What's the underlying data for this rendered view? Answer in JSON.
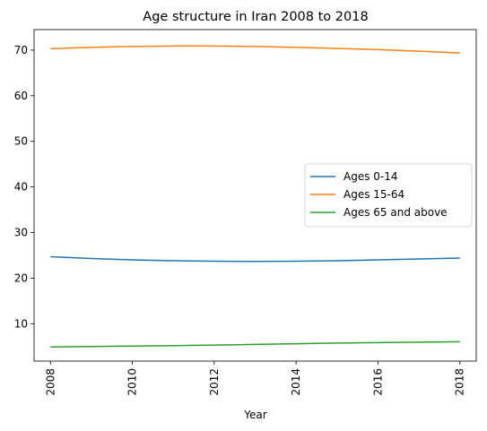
{
  "chart_data": {
    "type": "line",
    "title": "Age structure in Iran 2008 to 2018",
    "xlabel": "Year",
    "ylabel": "",
    "x": [
      2008,
      2009,
      2010,
      2011,
      2012,
      2013,
      2014,
      2015,
      2016,
      2017,
      2018
    ],
    "xlim": [
      2007.6,
      2018.4
    ],
    "ylim": [
      1.8,
      74.5
    ],
    "xticks": [
      2008,
      2010,
      2012,
      2014,
      2016,
      2018
    ],
    "yticks": [
      10,
      20,
      30,
      40,
      50,
      60,
      70
    ],
    "grid": false,
    "legend_position": "center-right",
    "series": [
      {
        "name": "Ages 0-14",
        "color": "#1f77b4",
        "values": [
          24.7,
          24.3,
          24.0,
          23.8,
          23.7,
          23.65,
          23.7,
          23.8,
          24.0,
          24.2,
          24.4
        ]
      },
      {
        "name": "Ages 15-64",
        "color": "#ff7f0e",
        "values": [
          70.3,
          70.6,
          70.8,
          70.9,
          70.9,
          70.8,
          70.6,
          70.35,
          70.1,
          69.75,
          69.35
        ]
      },
      {
        "name": "Ages 65 and above",
        "color": "#2ca02c",
        "values": [
          4.9,
          5.0,
          5.1,
          5.2,
          5.3,
          5.45,
          5.6,
          5.75,
          5.85,
          5.95,
          6.05
        ]
      }
    ]
  }
}
